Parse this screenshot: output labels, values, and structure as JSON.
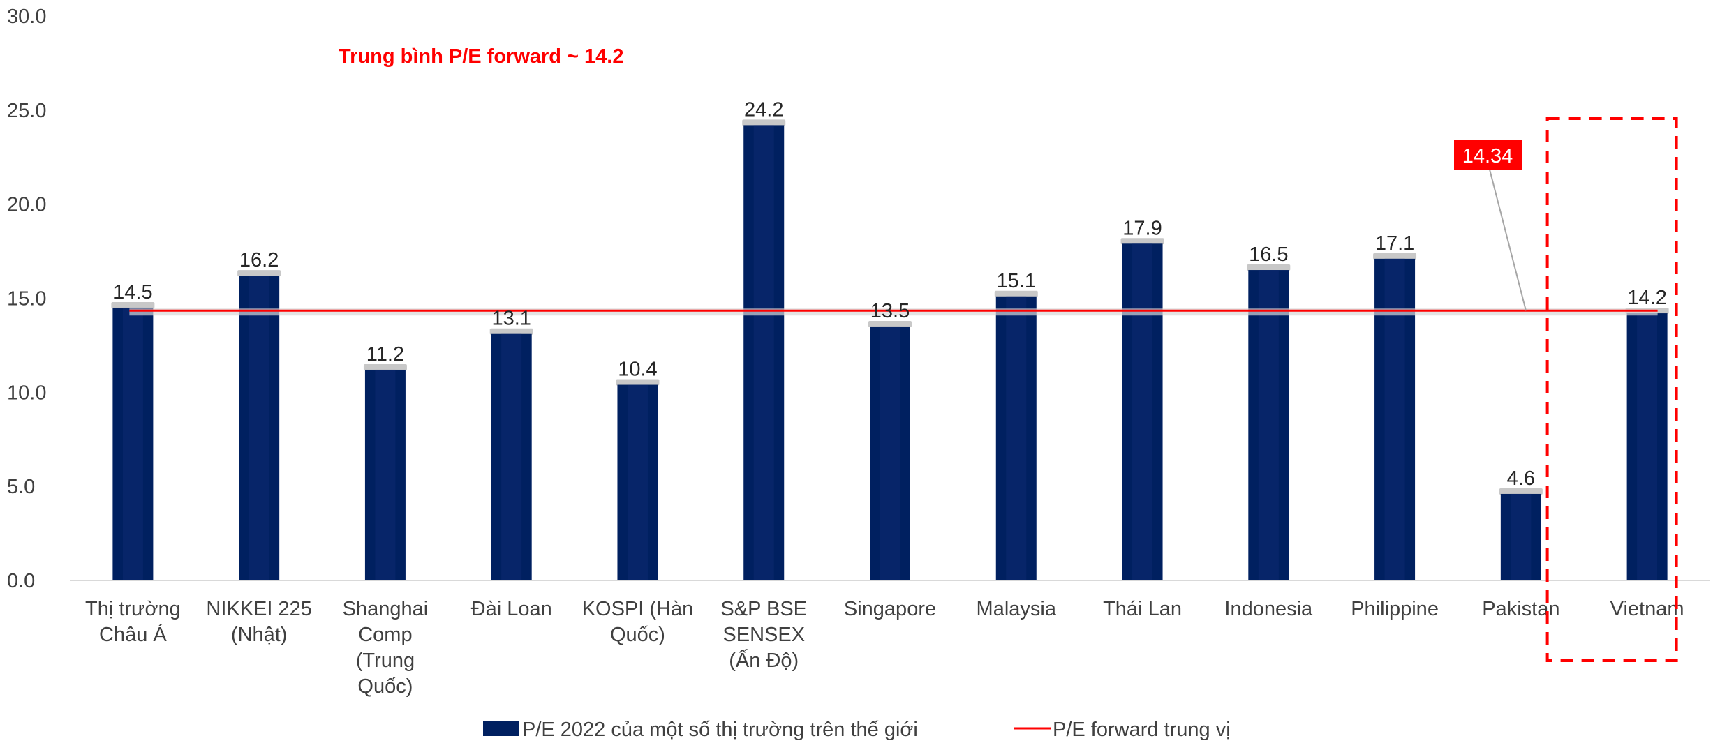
{
  "chart_data": {
    "type": "bar",
    "categories": [
      [
        "Thị trường",
        "Châu Á"
      ],
      [
        "NIKKEI 225",
        "(Nhật)"
      ],
      [
        "Shanghai",
        "Comp",
        "(Trung",
        "Quốc)"
      ],
      [
        "Đài Loan"
      ],
      [
        "KOSPI (Hàn",
        "Quốc)"
      ],
      [
        "S&P BSE",
        "SENSEX",
        "(Ấn Độ)"
      ],
      [
        "Singapore"
      ],
      [
        "Malaysia"
      ],
      [
        "Thái Lan"
      ],
      [
        "Indonesia"
      ],
      [
        "Philippine"
      ],
      [
        "Pakistan"
      ],
      [
        "Vietnam"
      ]
    ],
    "series": [
      {
        "name": "P/E 2022 của một số thị trường trên thế giới",
        "values": [
          14.5,
          16.2,
          11.2,
          13.1,
          10.4,
          24.2,
          13.5,
          15.1,
          17.9,
          16.5,
          17.1,
          4.6,
          14.2
        ],
        "color": "#002060"
      },
      {
        "name": "P/E forward trung vị",
        "type": "line",
        "value": 14.34,
        "color": "#ff0000"
      }
    ],
    "ylim": [
      0,
      30
    ],
    "yticks": [
      "0.0",
      "5.0",
      "10.0",
      "15.0",
      "20.0",
      "25.0",
      "30.0"
    ],
    "data_labels": [
      "14.5",
      "16.2",
      "11.2",
      "13.1",
      "10.4",
      "24.2",
      "13.5",
      "15.1",
      "17.9",
      "16.5",
      "17.1",
      "4.6",
      "14.2"
    ],
    "annotations": {
      "average_text": "Trung bình P/E forward ~ 14.2",
      "callout_label": "14.34",
      "highlight_category": "Vietnam"
    },
    "grid": false,
    "legend_position": "bottom"
  }
}
